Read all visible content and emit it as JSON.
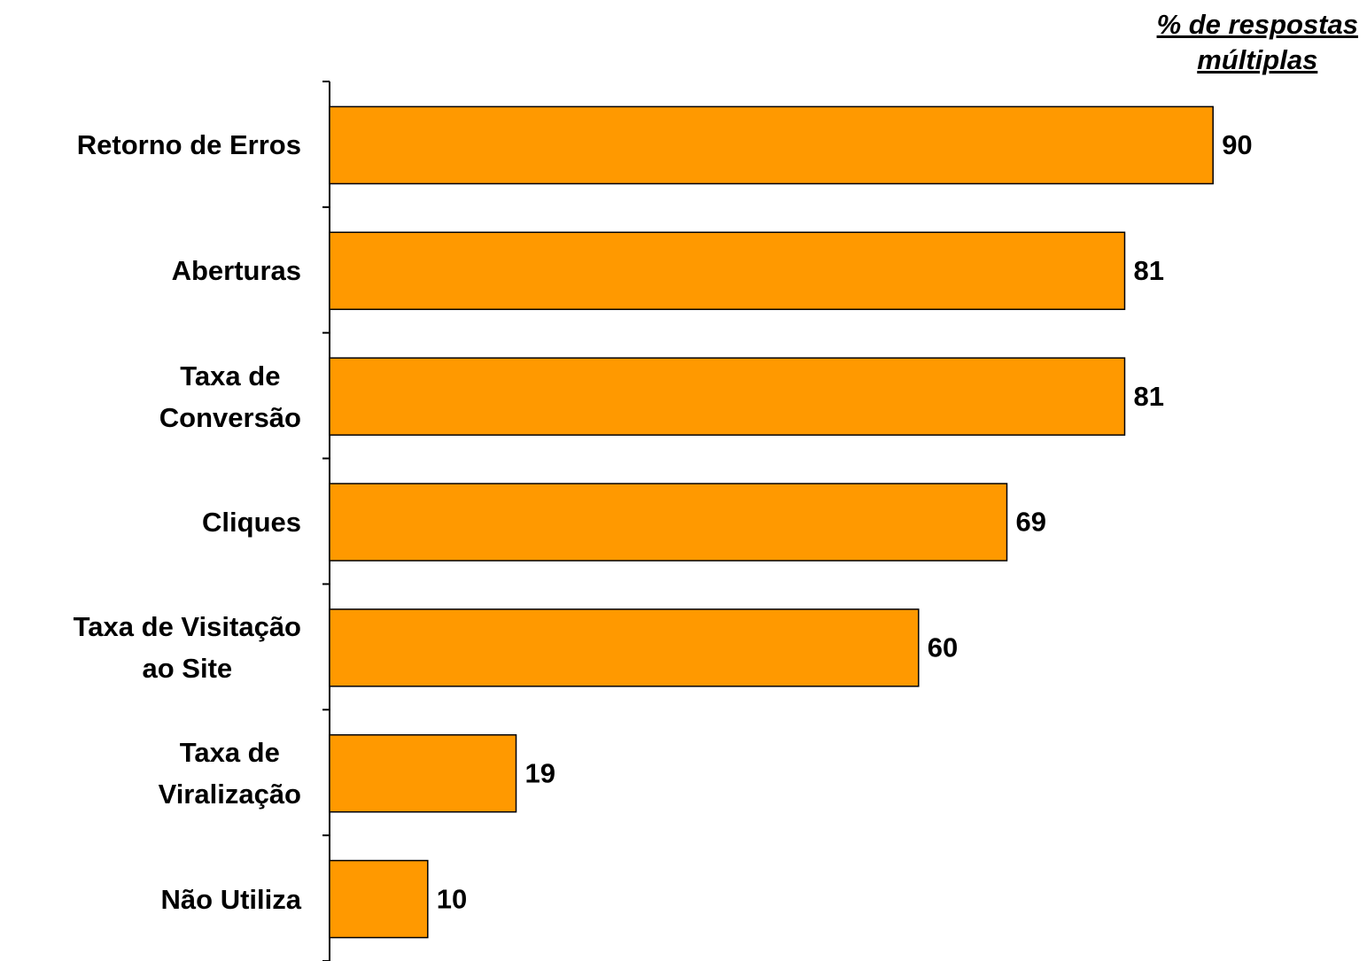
{
  "chart_data": {
    "type": "bar",
    "orientation": "horizontal",
    "title": "% de respostas\nmúltiplas",
    "categories": [
      "Retorno de Erros",
      "Aberturas",
      "Taxa de\nConversão",
      "Cliques",
      "Taxa de Visitação\nao Site",
      "Taxa de\nViralização",
      "Não Utiliza"
    ],
    "values": [
      90,
      81,
      81,
      69,
      60,
      19,
      10
    ],
    "color": "#ff9900"
  }
}
